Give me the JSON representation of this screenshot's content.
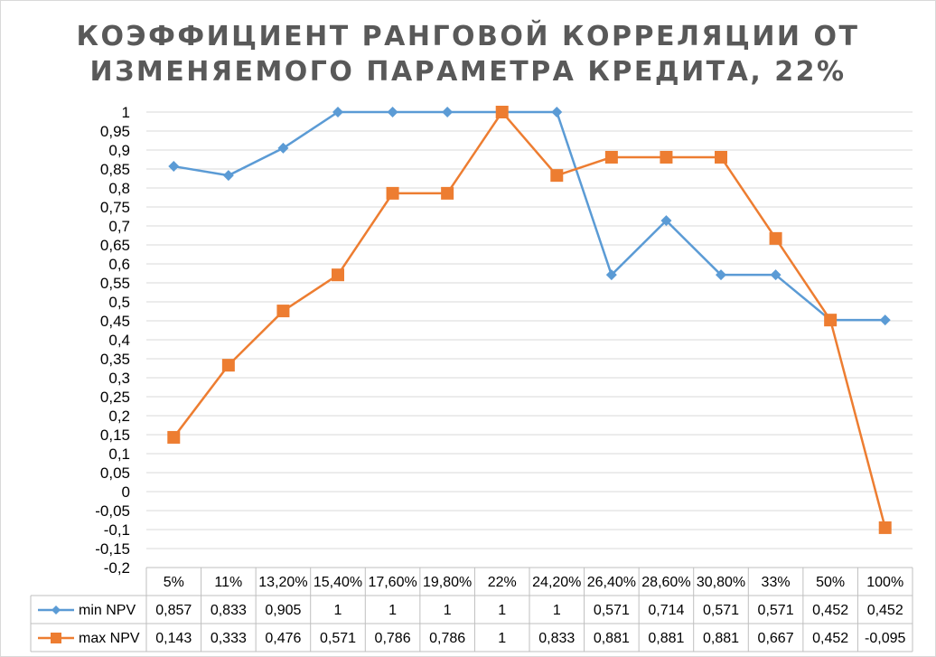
{
  "chart_data": {
    "type": "line",
    "title": [
      "КОЭФФИЦИЕНТ РАНГОВОЙ КОРРЕЛЯЦИИ ОТ",
      "ИЗМЕНЯЕМОГО ПАРАМЕТРА КРЕДИТА, 22%"
    ],
    "categories": [
      "5%",
      "11%",
      "13,20%",
      "15,40%",
      "17,60%",
      "19,80%",
      "22%",
      "24,20%",
      "26,40%",
      "28,60%",
      "30,80%",
      "33%",
      "50%",
      "100%"
    ],
    "series": [
      {
        "name": "min NPV",
        "color": "#5b9bd5",
        "marker": "diamond",
        "values": [
          0.857,
          0.833,
          0.905,
          1,
          1,
          1,
          1,
          1,
          0.571,
          0.714,
          0.571,
          0.571,
          0.452,
          0.452
        ],
        "labels": [
          "0,857",
          "0,833",
          "0,905",
          "1",
          "1",
          "1",
          "1",
          "1",
          "0,571",
          "0,714",
          "0,571",
          "0,571",
          "0,452",
          "0,452"
        ]
      },
      {
        "name": "max NPV",
        "color": "#ed7d31",
        "marker": "square",
        "values": [
          0.143,
          0.333,
          0.476,
          0.571,
          0.786,
          0.786,
          1,
          0.833,
          0.881,
          0.881,
          0.881,
          0.667,
          0.452,
          -0.095
        ],
        "labels": [
          "0,143",
          "0,333",
          "0,476",
          "0,571",
          "0,786",
          "0,786",
          "1",
          "0,833",
          "0,881",
          "0,881",
          "0,881",
          "0,667",
          "0,452",
          "-0,095"
        ]
      }
    ],
    "ylim": [
      -0.2,
      1
    ],
    "ystep": 0.05,
    "yticks": [
      "-0,2",
      "-0,15",
      "-0,1",
      "-0,05",
      "0",
      "0,05",
      "0,1",
      "0,15",
      "0,2",
      "0,25",
      "0,3",
      "0,35",
      "0,4",
      "0,45",
      "0,5",
      "0,55",
      "0,6",
      "0,65",
      "0,7",
      "0,75",
      "0,8",
      "0,85",
      "0,9",
      "0,95",
      "1"
    ],
    "grid": true,
    "legend": "data table below chart"
  }
}
